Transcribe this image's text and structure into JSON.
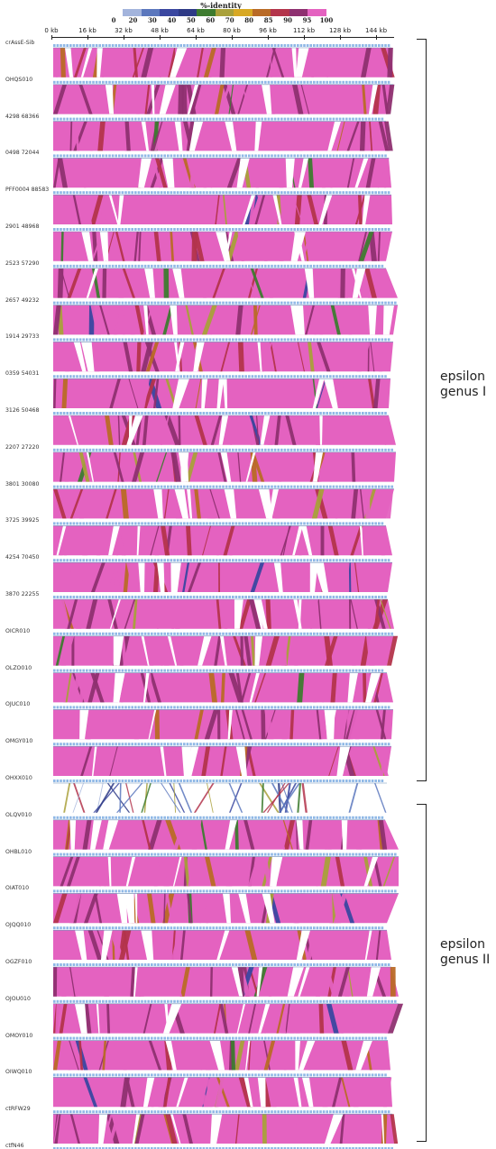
{
  "legend": {
    "title": "%-identity",
    "ticks": [
      "0",
      "20",
      "30",
      "40",
      "50",
      "60",
      "70",
      "80",
      "85",
      "90",
      "95",
      "100"
    ],
    "colors": [
      "#d9dcef",
      "#a3b4dc",
      "#5b77bd",
      "#3a47a0",
      "#2e3a86",
      "#3d7b2f",
      "#a9a03a",
      "#d8a824",
      "#b96a26",
      "#b3344b",
      "#8e3070",
      "#e462c0"
    ]
  },
  "axis": {
    "labels": [
      "0 kb",
      "16 kb",
      "32 kb",
      "48 kb",
      "64 kb",
      "80 kb",
      "96 kb",
      "112 kb",
      "128 kb",
      "144 kb"
    ]
  },
  "genomes": [
    {
      "name": "crAssE-Sib"
    },
    {
      "name": "OHQS010"
    },
    {
      "name": "4298 68366"
    },
    {
      "name": "0498 72044"
    },
    {
      "name": "PFF0004 88583"
    },
    {
      "name": "2901 48968"
    },
    {
      "name": "2523 57290"
    },
    {
      "name": "2657 49232"
    },
    {
      "name": "1914 29733"
    },
    {
      "name": "0359 54031"
    },
    {
      "name": "3126 50468"
    },
    {
      "name": "2207 27220"
    },
    {
      "name": "3801 30080"
    },
    {
      "name": "3725 39925"
    },
    {
      "name": "4254 70450"
    },
    {
      "name": "3870 22255"
    },
    {
      "name": "OICR010"
    },
    {
      "name": "OLZO010"
    },
    {
      "name": "OJUC010"
    },
    {
      "name": "OMGY010"
    },
    {
      "name": "OHXX010"
    },
    {
      "name": "OLQV010"
    },
    {
      "name": "OHBL010"
    },
    {
      "name": "OIAT010"
    },
    {
      "name": "OJQQ010"
    },
    {
      "name": "OGZF010"
    },
    {
      "name": "OJOU010"
    },
    {
      "name": "OMOY010"
    },
    {
      "name": "OIWQ010"
    },
    {
      "name": "ctRFW29"
    },
    {
      "name": "ctfN46"
    }
  ],
  "groups": [
    {
      "label_line1": "epsilon",
      "label_line2": "genus I"
    },
    {
      "label_line1": "epsilon",
      "label_line2": "genus II"
    }
  ],
  "colors": {
    "genome_track": "#8fb8e6",
    "background_identity": "#e462c0",
    "bracket": "#222222"
  }
}
